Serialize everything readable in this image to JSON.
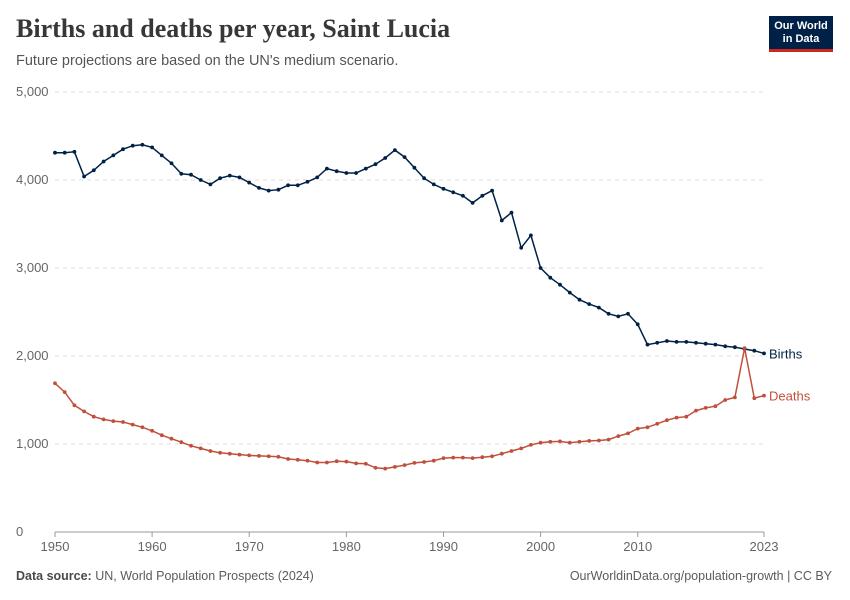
{
  "header": {
    "title": "Births and deaths per year, Saint Lucia",
    "subtitle": "Future projections are based on the UN's medium scenario."
  },
  "logo": {
    "line1": "Our World",
    "line2": "in Data",
    "bg_color": "#002147",
    "accent_color": "#ce261e"
  },
  "footer": {
    "source_label": "Data source:",
    "source_text": "UN, World Population Prospects (2024)",
    "attribution": "OurWorldinData.org/population-growth | CC BY"
  },
  "chart_data": {
    "type": "line",
    "title": "Births and deaths per year, Saint Lucia",
    "xlabel": "",
    "ylabel": "",
    "xlim": [
      1950,
      2023
    ],
    "ylim": [
      0,
      5000
    ],
    "x_ticks": [
      1950,
      1960,
      1970,
      1980,
      1990,
      2000,
      2010,
      2023
    ],
    "y_ticks": [
      0,
      1000,
      2000,
      3000,
      4000,
      5000
    ],
    "y_tick_labels": [
      "0",
      "1,000",
      "2,000",
      "3,000",
      "4,000",
      "5,000"
    ],
    "grid": true,
    "legend": "inline-right",
    "x": [
      1950,
      1951,
      1952,
      1953,
      1954,
      1955,
      1956,
      1957,
      1958,
      1959,
      1960,
      1961,
      1962,
      1963,
      1964,
      1965,
      1966,
      1967,
      1968,
      1969,
      1970,
      1971,
      1972,
      1973,
      1974,
      1975,
      1976,
      1977,
      1978,
      1979,
      1980,
      1981,
      1982,
      1983,
      1984,
      1985,
      1986,
      1987,
      1988,
      1989,
      1990,
      1991,
      1992,
      1993,
      1994,
      1995,
      1996,
      1997,
      1998,
      1999,
      2000,
      2001,
      2002,
      2003,
      2004,
      2005,
      2006,
      2007,
      2008,
      2009,
      2010,
      2011,
      2012,
      2013,
      2014,
      2015,
      2016,
      2017,
      2018,
      2019,
      2020,
      2021,
      2022,
      2023
    ],
    "series": [
      {
        "name": "Births",
        "color": "#002147",
        "values": [
          4310,
          4310,
          4320,
          4040,
          4110,
          4210,
          4280,
          4350,
          4390,
          4400,
          4370,
          4280,
          4190,
          4070,
          4060,
          4000,
          3950,
          4020,
          4050,
          4030,
          3970,
          3910,
          3880,
          3890,
          3940,
          3940,
          3980,
          4030,
          4130,
          4100,
          4080,
          4080,
          4130,
          4180,
          4250,
          4340,
          4260,
          4140,
          4020,
          3950,
          3900,
          3860,
          3820,
          3740,
          3820,
          3880,
          3540,
          3630,
          3230,
          3370,
          3000,
          2890,
          2810,
          2720,
          2640,
          2590,
          2550,
          2480,
          2450,
          2480,
          2360,
          2130,
          2150,
          2170,
          2160,
          2160,
          2150,
          2140,
          2130,
          2110,
          2100,
          2080,
          2060,
          2030
        ]
      },
      {
        "name": "Deaths",
        "color": "#c0503c",
        "values": [
          1690,
          1590,
          1440,
          1370,
          1310,
          1280,
          1260,
          1250,
          1220,
          1190,
          1150,
          1100,
          1060,
          1020,
          980,
          950,
          920,
          900,
          890,
          880,
          870,
          865,
          860,
          855,
          830,
          820,
          810,
          790,
          790,
          805,
          800,
          780,
          775,
          730,
          720,
          740,
          760,
          785,
          795,
          810,
          840,
          845,
          845,
          840,
          850,
          860,
          890,
          920,
          950,
          990,
          1015,
          1025,
          1030,
          1015,
          1025,
          1035,
          1040,
          1050,
          1090,
          1120,
          1175,
          1190,
          1230,
          1270,
          1300,
          1310,
          1380,
          1410,
          1430,
          1500,
          1530,
          2090,
          1520,
          1550
        ]
      }
    ]
  }
}
